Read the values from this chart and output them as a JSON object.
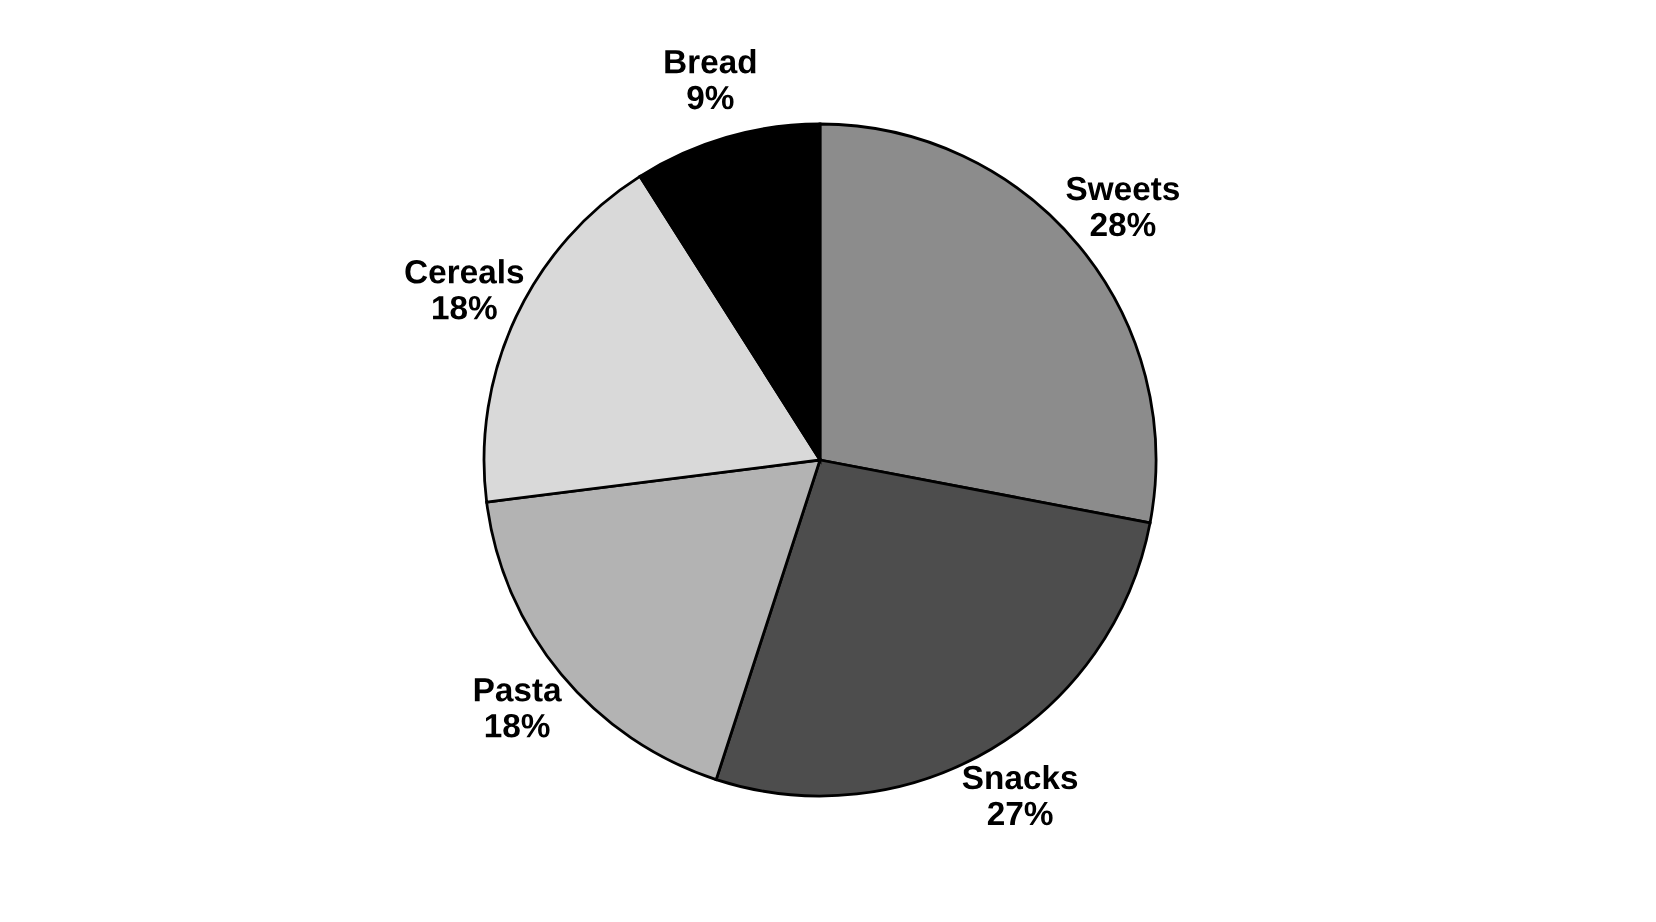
{
  "chart_data": {
    "type": "pie",
    "categories": [
      "Sweets",
      "Snacks",
      "Pasta",
      "Cereals",
      "Bread"
    ],
    "values": [
      28,
      27,
      18,
      18,
      9
    ],
    "value_labels": [
      "28%",
      "27%",
      "18%",
      "18%",
      "9%"
    ],
    "colors": [
      "#8c8c8c",
      "#4d4d4d",
      "#b3b3b3",
      "#d9d9d9",
      "#000000"
    ],
    "legend": false
  }
}
